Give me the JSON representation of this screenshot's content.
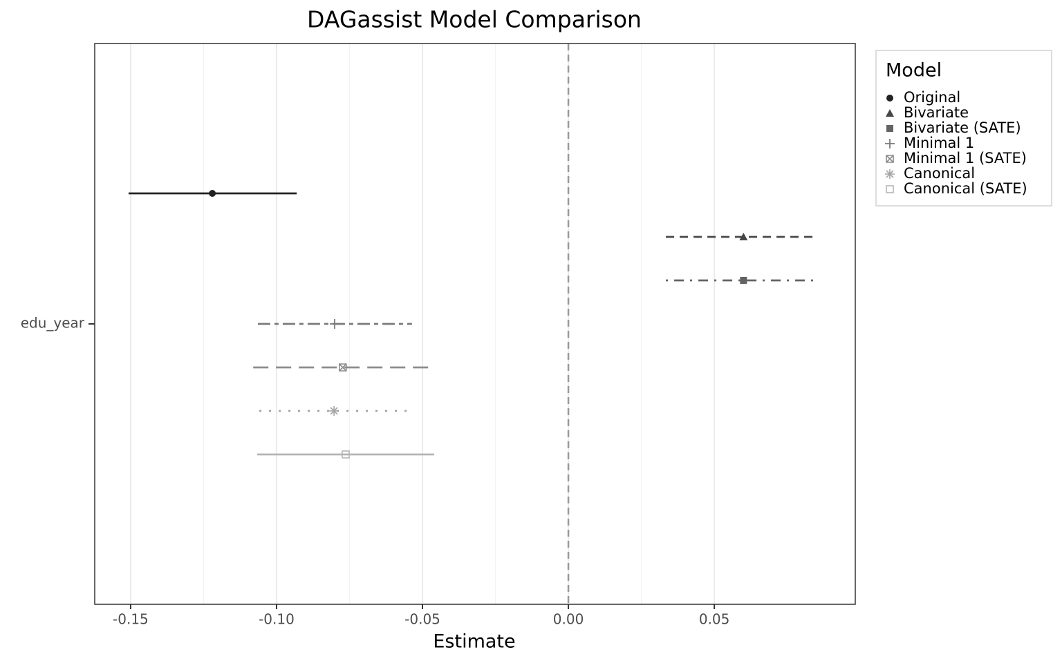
{
  "chart_data": {
    "type": "pointrange",
    "title": "DAGassist Model Comparison",
    "x_label": "Estimate",
    "categories": [
      "edu_year"
    ],
    "xlim": [
      -0.1623,
      0.0983
    ],
    "xticks": [
      -0.15,
      {
        "value": -0.1,
        "label": "-0.10"
      },
      -0.05,
      {
        "value": 0,
        "label": "0.00"
      },
      0.05
    ],
    "grid": true,
    "vline": 0,
    "legend_title": "Model",
    "legend_position": "right",
    "series": [
      {
        "name": "Original",
        "color": "#222222",
        "linetype": "solid",
        "shape": "circle",
        "values": [
          -0.122
        ],
        "lower": [
          -0.1507
        ],
        "upper": [
          -0.0931
        ]
      },
      {
        "name": "Bivariate",
        "color": "#474747",
        "linetype": "dashed",
        "shape": "triangle",
        "values": [
          0.06
        ],
        "lower": [
          0.0334
        ],
        "upper": [
          0.0848
        ]
      },
      {
        "name": "Bivariate (SATE)",
        "color": "#636363",
        "linetype": "dotdash",
        "shape": "square",
        "values": [
          0.06
        ],
        "lower": [
          0.0334
        ],
        "upper": [
          0.086
        ]
      },
      {
        "name": "Minimal 1",
        "color": "#7a7a7a",
        "linetype": "twodash",
        "shape": "plus",
        "values": [
          -0.0801
        ],
        "lower": [
          -0.1064
        ],
        "upper": [
          -0.0536
        ]
      },
      {
        "name": "Minimal 1 (SATE)",
        "color": "#8c8c8c",
        "linetype": "longdash",
        "shape": "square-cross",
        "values": [
          -0.0773
        ],
        "lower": [
          -0.108
        ],
        "upper": [
          -0.0462
        ]
      },
      {
        "name": "Canonical",
        "color": "#a3a3a3",
        "linetype": "dotted",
        "shape": "asterisk",
        "values": [
          -0.0803
        ],
        "lower": [
          -0.1059
        ],
        "upper": [
          -0.054
        ]
      },
      {
        "name": "Canonical (SATE)",
        "color": "#b5b5b5",
        "linetype": "solid",
        "shape": "square-open",
        "values": [
          -0.0763
        ],
        "lower": [
          -0.1066
        ],
        "upper": [
          -0.046
        ]
      }
    ]
  }
}
